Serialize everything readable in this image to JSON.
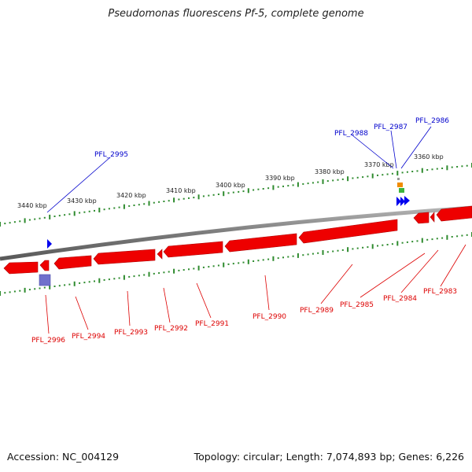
{
  "title": "Pseudomonas fluorescens Pf-5, complete genome",
  "footer": {
    "accession": "Accession: NC_004129",
    "topology": "Topology: circular; Length: 7,074,893 bp; Genes: 6,226"
  },
  "colors": {
    "backbone": "#8a8a8a",
    "forward_gene": "#0000ee",
    "reverse_gene": "#ee0000",
    "tick": "#2e8b2e",
    "orange_feature": "#f08c00",
    "green_feature": "#3cb43c",
    "purple_feature": "#7070cc"
  },
  "kbp_labels": [
    {
      "label": "3440 kbp"
    },
    {
      "label": "3430 kbp"
    },
    {
      "label": "3420 kbp"
    },
    {
      "label": "3410 kbp"
    },
    {
      "label": "3400 kbp"
    },
    {
      "label": "3390 kbp"
    },
    {
      "label": "3380 kbp"
    },
    {
      "label": "3370 kbp"
    },
    {
      "label": "3360 kbp"
    }
  ],
  "forward_genes": [
    "PFL_2995",
    "PFL_2988",
    "PFL_2987",
    "PFL_2986"
  ],
  "reverse_genes": [
    "PFL_2996",
    "PFL_2994",
    "PFL_2993",
    "PFL_2992",
    "PFL_2991",
    "PFL_2990",
    "PFL_2989",
    "PFL_2985",
    "PFL_2984",
    "PFL_2983"
  ]
}
